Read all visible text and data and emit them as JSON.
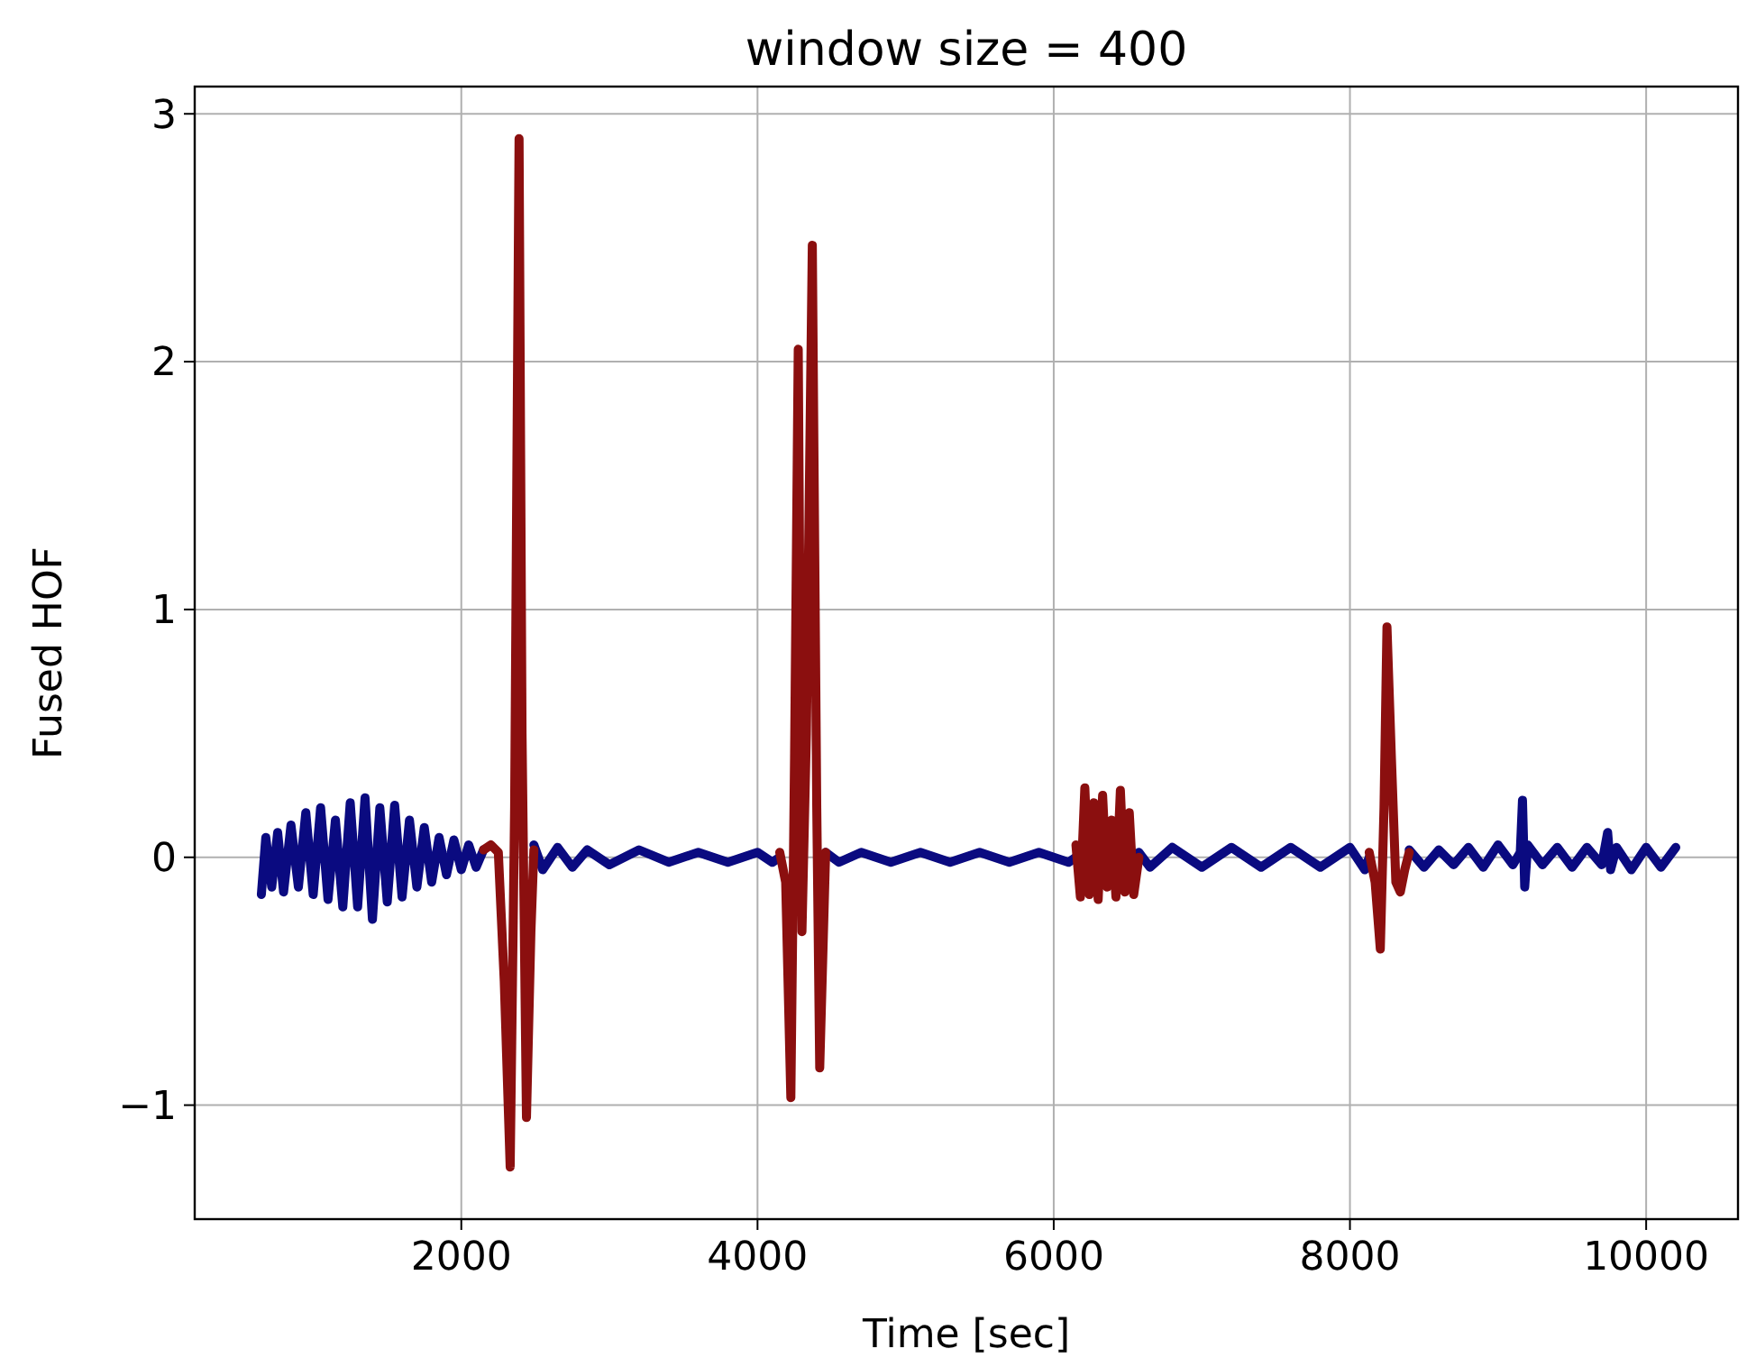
{
  "chart_data": {
    "type": "line",
    "title": "window size = 400",
    "xlabel": "Time [sec]",
    "ylabel": "Fused HOF",
    "xlim": [
      200,
      10620
    ],
    "ylim": [
      -1.46,
      3.11
    ],
    "xticks": [
      2000,
      4000,
      6000,
      8000,
      10000
    ],
    "yticks": [
      {
        "value": -1,
        "label": "−1"
      },
      0,
      1,
      2,
      3
    ],
    "grid": true,
    "line_style": "solid",
    "marker": "none",
    "series": [
      {
        "color": "#0a0a80",
        "x": [
          650,
          680,
          720,
          760,
          800,
          850,
          900,
          950,
          1000,
          1050,
          1100,
          1150,
          1200,
          1250,
          1300,
          1350,
          1400,
          1450,
          1500,
          1550,
          1600,
          1650,
          1700,
          1750,
          1800,
          1850,
          1900,
          1950,
          2000,
          2050,
          2100,
          2150,
          null,
          2490,
          2550,
          2650,
          2750,
          2850,
          3000,
          3200,
          3400,
          3600,
          3800,
          4000,
          4100,
          4150,
          null,
          4460,
          4550,
          4700,
          4900,
          5100,
          5300,
          5500,
          5700,
          5900,
          6100,
          6150,
          null,
          6575,
          6650,
          6800,
          7000,
          7200,
          7400,
          7600,
          7800,
          8000,
          8100,
          8130,
          null,
          8400,
          8500,
          8600,
          8700,
          8800,
          8900,
          9000,
          9100,
          9150,
          9165,
          9180,
          9200,
          9300,
          9400,
          9500,
          9600,
          9700,
          9740,
          9760,
          9800,
          9900,
          10000,
          10100,
          10200
        ],
        "values": [
          -0.15,
          0.08,
          -0.12,
          0.1,
          -0.14,
          0.13,
          -0.12,
          0.18,
          -0.15,
          0.2,
          -0.17,
          0.15,
          -0.2,
          0.22,
          -0.2,
          0.24,
          -0.25,
          0.2,
          -0.18,
          0.21,
          -0.16,
          0.15,
          -0.12,
          0.12,
          -0.1,
          0.08,
          -0.07,
          0.07,
          -0.05,
          0.05,
          -0.04,
          0.03,
          null,
          0.05,
          -0.05,
          0.04,
          -0.04,
          0.03,
          -0.03,
          0.03,
          -0.02,
          0.02,
          -0.02,
          0.02,
          -0.02,
          0.0,
          null,
          0.02,
          -0.02,
          0.02,
          -0.02,
          0.02,
          -0.02,
          0.02,
          -0.02,
          0.02,
          -0.02,
          0.0,
          null,
          0.02,
          -0.04,
          0.04,
          -0.04,
          0.04,
          -0.04,
          0.04,
          -0.04,
          0.04,
          -0.05,
          0.0,
          null,
          0.03,
          -0.04,
          0.03,
          -0.03,
          0.04,
          -0.04,
          0.05,
          -0.03,
          0.02,
          0.23,
          -0.12,
          0.05,
          -0.03,
          0.04,
          -0.04,
          0.04,
          -0.03,
          0.1,
          -0.05,
          0.04,
          -0.05,
          0.04,
          -0.04,
          0.04
        ]
      },
      {
        "color": "#8b0f0f",
        "x": [
          2150,
          2200,
          2250,
          2290,
          2330,
          2360,
          2390,
          2410,
          2440,
          2470,
          2490,
          null,
          4150,
          4190,
          4225,
          4250,
          4275,
          4300,
          4330,
          4370,
          4400,
          4420,
          4460,
          null,
          6150,
          6180,
          6210,
          6240,
          6270,
          6300,
          6330,
          6360,
          6390,
          6420,
          6450,
          6480,
          6510,
          6540,
          6575,
          null,
          8130,
          8170,
          8205,
          8230,
          8250,
          8280,
          8310,
          8340,
          8370,
          8400
        ],
        "values": [
          0.03,
          0.05,
          0.02,
          -0.5,
          -1.25,
          0.2,
          2.9,
          0.5,
          -1.05,
          -0.3,
          0.03,
          null,
          0.02,
          -0.1,
          -0.97,
          0.4,
          2.05,
          -0.3,
          0.5,
          2.47,
          0.2,
          -0.85,
          0.02,
          null,
          0.05,
          -0.16,
          0.28,
          -0.15,
          0.22,
          -0.17,
          0.25,
          -0.12,
          0.15,
          -0.16,
          0.27,
          -0.14,
          0.18,
          -0.15,
          0.0,
          null,
          0.02,
          -0.1,
          -0.37,
          0.2,
          0.93,
          0.4,
          -0.1,
          -0.14,
          -0.05,
          0.02
        ]
      }
    ]
  }
}
